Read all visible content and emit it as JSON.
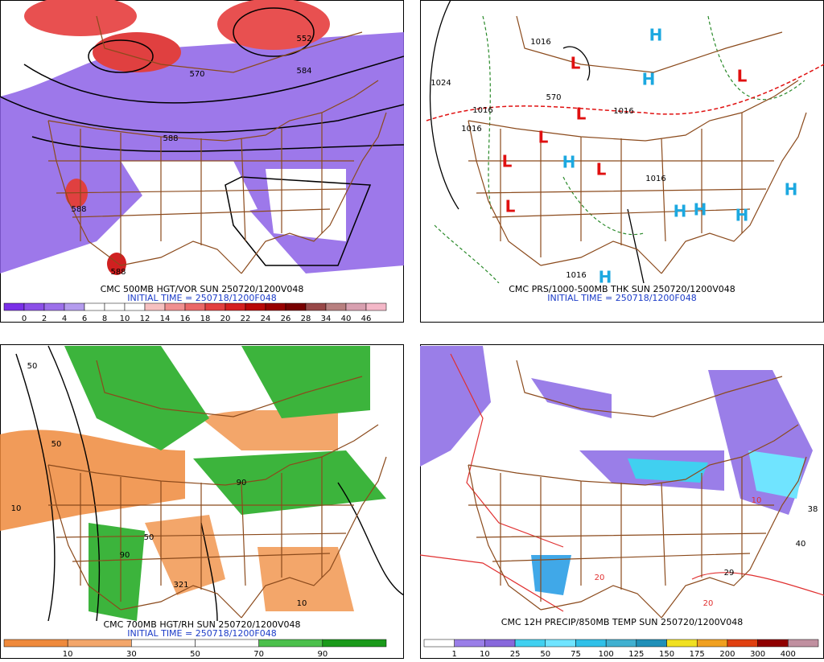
{
  "panels": [
    {
      "caption": "CMC 500MB HGT/VOR SUN 250720/1200V048",
      "initial_time": "INITIAL TIME = 250718/1200F048",
      "colorbar": {
        "colors": [
          "#7a30e8",
          "#8c50e8",
          "#9c70ea",
          "#b49cee",
          "#ffffff",
          "#ffffff",
          "#ffffff",
          "#f6c0c0",
          "#f09090",
          "#ea6868",
          "#e24040",
          "#d42020",
          "#b80808",
          "#980000",
          "#780000",
          "#984848",
          "#b88080",
          "#d8a0b0",
          "#f4b8c8"
        ],
        "labels": [
          0,
          2,
          4,
          6,
          8,
          10,
          12,
          14,
          16,
          18,
          20,
          22,
          24,
          26,
          28,
          34,
          40,
          46
        ]
      },
      "map_labels": [
        {
          "text": "552",
          "color": "#000000"
        },
        {
          "text": "584",
          "color": "#000000"
        },
        {
          "text": "570",
          "color": "#000000"
        },
        {
          "text": "588",
          "color": "#000000"
        },
        {
          "text": "588",
          "color": "#000000"
        },
        {
          "text": "588",
          "color": "#000000"
        }
      ]
    },
    {
      "caption": "CMC PRS/1000-500MB THK SUN 250720/1200V048",
      "initial_time": "INITIAL TIME = 250718/1200F048",
      "colorbar": null,
      "map_labels": [
        {
          "text": "1016",
          "color": "#000000"
        },
        {
          "text": "1024",
          "color": "#000000"
        },
        {
          "text": "1016",
          "color": "#000000"
        },
        {
          "text": "1016",
          "color": "#000000"
        },
        {
          "text": "570",
          "color": "#000000"
        },
        {
          "text": "1016",
          "color": "#000000"
        },
        {
          "text": "1016",
          "color": "#000000"
        },
        {
          "text": "1016",
          "color": "#000000"
        },
        {
          "text": "H",
          "color": "#1ca8e0"
        },
        {
          "text": "H",
          "color": "#1ca8e0"
        },
        {
          "text": "H",
          "color": "#1ca8e0"
        },
        {
          "text": "H",
          "color": "#1ca8e0"
        },
        {
          "text": "H",
          "color": "#1ca8e0"
        },
        {
          "text": "H",
          "color": "#1ca8e0"
        },
        {
          "text": "H",
          "color": "#1ca8e0"
        },
        {
          "text": "H",
          "color": "#1ca8e0"
        },
        {
          "text": "L",
          "color": "#e01010"
        },
        {
          "text": "L",
          "color": "#e01010"
        },
        {
          "text": "L",
          "color": "#e01010"
        },
        {
          "text": "L",
          "color": "#e01010"
        },
        {
          "text": "L",
          "color": "#e01010"
        },
        {
          "text": "L",
          "color": "#e01010"
        },
        {
          "text": "L",
          "color": "#e01010"
        }
      ]
    },
    {
      "caption": "CMC 700MB HGT/RH SUN 250720/1200V048",
      "initial_time": "INITIAL TIME = 250718/1200F048",
      "colorbar": {
        "colors": [
          "#ef8a3c",
          "#f3a66a",
          "#ffffff",
          "#ffffff",
          "#4cc04c",
          "#1a9a1a"
        ],
        "labels": [
          10,
          30,
          50,
          70,
          90
        ]
      },
      "map_labels": [
        {
          "text": "50",
          "color": "#000000"
        },
        {
          "text": "10",
          "color": "#000000"
        },
        {
          "text": "50",
          "color": "#000000"
        },
        {
          "text": "90",
          "color": "#000000"
        },
        {
          "text": "50",
          "color": "#000000"
        },
        {
          "text": "10",
          "color": "#000000"
        },
        {
          "text": "321",
          "color": "#000000"
        },
        {
          "text": "90",
          "color": "#000000"
        }
      ]
    },
    {
      "caption": "CMC 12H PRECIP/850MB TEMP SUN 250720/1200V048",
      "initial_time": null,
      "colorbar": {
        "colors": [
          "#ffffff",
          "#9a7ee8",
          "#8868dc",
          "#40d0f0",
          "#70e4ff",
          "#30c0e8",
          "#40b0d0",
          "#2090b8",
          "#f0e020",
          "#f0a020",
          "#e04010",
          "#900000",
          "#c090a0"
        ],
        "labels": [
          1,
          10,
          25,
          50,
          75,
          100,
          125,
          150,
          175,
          200,
          300,
          400
        ]
      },
      "map_labels": [
        {
          "text": "20",
          "color": "#e03030"
        },
        {
          "text": "10",
          "color": "#e03030"
        },
        {
          "text": "40",
          "color": "#000000"
        },
        {
          "text": "29",
          "color": "#000000"
        },
        {
          "text": "38",
          "color": "#000000"
        },
        {
          "text": "20",
          "color": "#e03030"
        }
      ]
    }
  ]
}
